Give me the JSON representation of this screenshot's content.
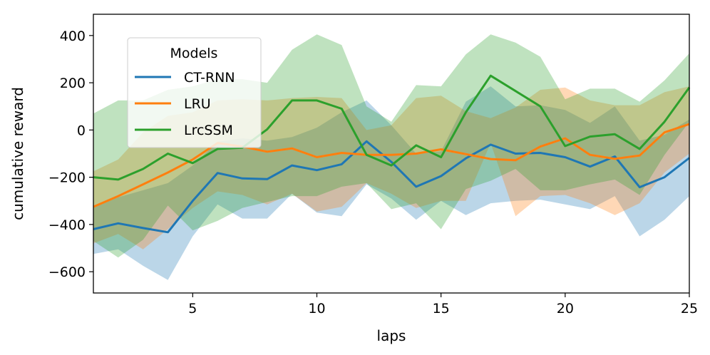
{
  "chart_data": {
    "type": "line",
    "title": "",
    "xlabel": "laps",
    "ylabel": "cumulative reward",
    "xlim": [
      1,
      25
    ],
    "ylim": [
      -690,
      490
    ],
    "xticks": [
      5,
      10,
      15,
      20,
      25
    ],
    "yticks": [
      -600,
      -400,
      -200,
      0,
      200,
      400
    ],
    "grid": false,
    "legend": {
      "title": "Models",
      "placement": "upper-left"
    },
    "x": [
      1,
      2,
      3,
      4,
      5,
      6,
      7,
      8,
      9,
      10,
      11,
      12,
      13,
      14,
      15,
      16,
      17,
      18,
      19,
      20,
      21,
      22,
      23,
      24,
      25
    ],
    "series": [
      {
        "name": "CT-RNN",
        "color": "#1f77b4",
        "values": [
          -420,
          -395,
          -415,
          -433,
          -300,
          -182,
          -205,
          -208,
          -150,
          -170,
          -145,
          -48,
          -135,
          -240,
          -195,
          -120,
          -62,
          -100,
          -97,
          -115,
          -155,
          -112,
          -242,
          -200,
          -118
        ],
        "lower": [
          -525,
          -505,
          -575,
          -635,
          -450,
          -315,
          -375,
          -375,
          -270,
          -350,
          -365,
          -230,
          -290,
          -380,
          -300,
          -360,
          -310,
          -300,
          -295,
          -315,
          -335,
          -280,
          -450,
          -380,
          -280
        ],
        "upper": [
          -325,
          -285,
          -255,
          -225,
          -150,
          -50,
          -35,
          -45,
          -30,
          10,
          75,
          125,
          20,
          -100,
          -90,
          120,
          185,
          100,
          105,
          85,
          30,
          100,
          -45,
          -20,
          45
        ]
      },
      {
        "name": "LRU",
        "color": "#ff7f0e",
        "values": [
          -325,
          -280,
          -230,
          -180,
          -125,
          -55,
          -70,
          -92,
          -78,
          -115,
          -97,
          -105,
          -105,
          -100,
          -82,
          -102,
          -123,
          -128,
          -70,
          -35,
          -105,
          -122,
          -108,
          -10,
          25
        ],
        "lower": [
          -480,
          -440,
          -505,
          -420,
          -330,
          -260,
          -275,
          -315,
          -270,
          -345,
          -325,
          -225,
          -270,
          -330,
          -300,
          -300,
          -55,
          -365,
          -280,
          -275,
          -310,
          -360,
          -310,
          -180,
          -100
        ],
        "upper": [
          -175,
          -125,
          -10,
          60,
          75,
          125,
          130,
          125,
          135,
          140,
          135,
          0,
          20,
          135,
          145,
          80,
          50,
          95,
          170,
          180,
          125,
          105,
          105,
          160,
          185
        ]
      },
      {
        "name": "LrcSSM",
        "color": "#2ca02c",
        "values": [
          -200,
          -210,
          -165,
          -100,
          -140,
          -80,
          -75,
          3,
          125,
          125,
          90,
          -105,
          -150,
          -65,
          -115,
          75,
          230,
          165,
          100,
          -68,
          -28,
          -18,
          -80,
          35,
          180
        ],
        "lower": [
          -470,
          -540,
          -465,
          -320,
          -425,
          -385,
          -330,
          -305,
          -280,
          -280,
          -240,
          -225,
          -335,
          -310,
          -420,
          -250,
          -215,
          -165,
          -255,
          -255,
          -230,
          -210,
          -275,
          -105,
          35
        ],
        "upper": [
          70,
          125,
          125,
          170,
          185,
          215,
          215,
          200,
          340,
          405,
          360,
          100,
          35,
          190,
          185,
          320,
          405,
          370,
          310,
          130,
          175,
          175,
          120,
          210,
          325
        ]
      }
    ]
  }
}
